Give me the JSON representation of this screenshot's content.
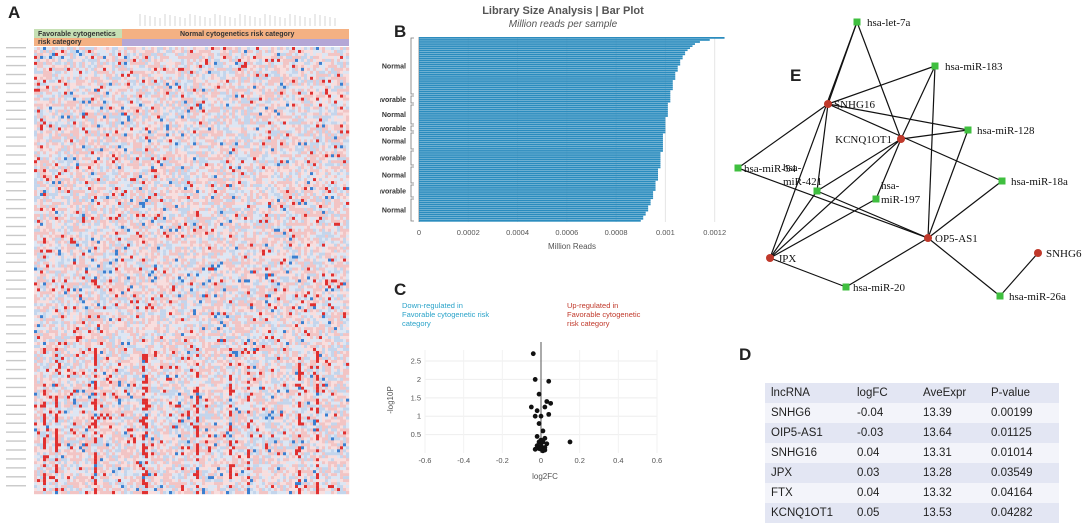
{
  "panels": {
    "a": "A",
    "b": "B",
    "c": "C",
    "d": "D",
    "e": "E"
  },
  "heatmap": {
    "group_labels": {
      "favorable_line1": "Favorable cytogenetics",
      "favorable_line2": "risk category",
      "normal": "Normal cytogenetics risk category"
    },
    "colors": {
      "favorable": "#f4b183",
      "favorable_light": "#c6e0b4",
      "normal": "#f4b183",
      "normal_bar": "#b4a7d6",
      "high": "#e03030",
      "low": "#3a7fd0"
    }
  },
  "chart_data": [
    {
      "type": "bar",
      "title": "Library Size Analysis | Bar Plot",
      "subtitle": "Million reads per sample",
      "xlabel": "Million Reads",
      "ylabel": "",
      "xlim": [
        0,
        0.00125
      ],
      "xticks": [
        "0",
        "0.0002",
        "0.0004",
        "0.0006",
        "0.0008",
        "0.001",
        "0.0012"
      ],
      "category_labels": [
        "Normal",
        "Favorable",
        "Normal",
        "Favorable",
        "Normal",
        "Favorable",
        "Normal",
        "Favorable",
        "Normal"
      ],
      "values": [
        0.00124,
        0.00118,
        0.00114,
        0.00112,
        0.00111,
        0.0011,
        0.00109,
        0.00108,
        0.00108,
        0.00107,
        0.00107,
        0.00106,
        0.00106,
        0.00106,
        0.00105,
        0.00105,
        0.00105,
        0.00104,
        0.00104,
        0.00104,
        0.00104,
        0.00103,
        0.00103,
        0.00103,
        0.00103,
        0.00103,
        0.00102,
        0.00102,
        0.00102,
        0.00102,
        0.00102,
        0.00102,
        0.00101,
        0.00101,
        0.00101,
        0.00101,
        0.00101,
        0.00101,
        0.00101,
        0.001,
        0.001,
        0.001,
        0.001,
        0.001,
        0.001,
        0.001,
        0.001,
        0.00099,
        0.00099,
        0.00099,
        0.00099,
        0.00099,
        0.00099,
        0.00099,
        0.00099,
        0.00099,
        0.00098,
        0.00098,
        0.00098,
        0.00098,
        0.00098,
        0.00098,
        0.00098,
        0.00098,
        0.00097,
        0.00097,
        0.00097,
        0.00097,
        0.00097,
        0.00097,
        0.00096,
        0.00096,
        0.00096,
        0.00096,
        0.00096,
        0.00095,
        0.00095,
        0.00095,
        0.00095,
        0.00094,
        0.00094,
        0.00094,
        0.00093,
        0.00093,
        0.00093,
        0.00092,
        0.00092,
        0.00091,
        0.00091,
        0.0009
      ],
      "bar_color": "#2b8cbe"
    },
    {
      "type": "scatter",
      "title": "",
      "xlabel": "log2FC",
      "ylabel": "-log10P",
      "xlim": [
        -0.6,
        0.6
      ],
      "ylim": [
        0,
        2.8
      ],
      "xticks": [
        "-0.6",
        "-0.4",
        "-0.2",
        "0",
        "0.2",
        "0.4",
        "0.6"
      ],
      "yticks": [
        "0.5",
        "1",
        "1.5",
        "2",
        "2.5"
      ],
      "annotations": {
        "down": [
          "Down-regulated in",
          "Favorable cytogenetic risk",
          "category"
        ],
        "up": [
          "Up-regulated in",
          "Favorable cytogenetic",
          "risk category"
        ]
      },
      "x": [
        -0.04,
        -0.03,
        -0.01,
        0.04,
        0.03,
        0.05,
        0.02,
        0.04,
        -0.05,
        -0.02,
        -0.03,
        0.0,
        -0.01,
        0.01,
        -0.02,
        0.02,
        0.0,
        -0.01,
        0.01,
        0.03,
        0.15,
        -0.02,
        0.0,
        0.02,
        -0.01,
        0.01,
        0.0,
        -0.03,
        0.02,
        0.01
      ],
      "y": [
        2.7,
        2.0,
        1.6,
        1.95,
        1.4,
        1.35,
        1.25,
        1.05,
        1.25,
        1.15,
        1.0,
        1.0,
        0.8,
        0.6,
        0.45,
        0.4,
        0.35,
        0.3,
        0.3,
        0.25,
        0.3,
        0.2,
        0.2,
        0.15,
        0.12,
        0.1,
        0.1,
        0.1,
        0.08,
        0.06
      ]
    }
  ],
  "network": {
    "nodes": [
      {
        "id": "let7a",
        "label": "hsa-let-7a",
        "type": "mirna"
      },
      {
        "id": "mir183",
        "label": "hsa-miR-183",
        "type": "mirna"
      },
      {
        "id": "snhg16",
        "label": "SNHG16",
        "type": "lncrna"
      },
      {
        "id": "mir128",
        "label": "hsa-miR-128",
        "type": "mirna"
      },
      {
        "id": "kcnq",
        "label": "KCNQ1OT1",
        "type": "lncrna"
      },
      {
        "id": "mir54",
        "label": "hsa-miR-54",
        "type": "mirna"
      },
      {
        "id": "mir18a",
        "label": "hsa-miR-18a",
        "type": "mirna"
      },
      {
        "id": "mir421",
        "label": "hsa-miR-421",
        "type": "mirna"
      },
      {
        "id": "mir197",
        "label": "hsa-miR-197",
        "type": "mirna"
      },
      {
        "id": "oip5",
        "label": "OP5-AS1",
        "type": "lncrna"
      },
      {
        "id": "snhg6",
        "label": "SNHG6",
        "type": "lncrna"
      },
      {
        "id": "jpx",
        "label": "JPX",
        "type": "lncrna"
      },
      {
        "id": "mir20",
        "label": "hsa-miR-20",
        "type": "mirna"
      },
      {
        "id": "mir26a",
        "label": "hsa-miR-26a",
        "type": "mirna"
      }
    ],
    "edges": [
      [
        "let7a",
        "snhg16"
      ],
      [
        "let7a",
        "kcnq"
      ],
      [
        "let7a",
        "jpx"
      ],
      [
        "mir183",
        "snhg16"
      ],
      [
        "mir183",
        "kcnq"
      ],
      [
        "mir183",
        "oip5"
      ],
      [
        "snhg16",
        "mir128"
      ],
      [
        "snhg16",
        "mir54"
      ],
      [
        "snhg16",
        "mir18a"
      ],
      [
        "snhg16",
        "mir421"
      ],
      [
        "kcnq",
        "mir128"
      ],
      [
        "kcnq",
        "mir421"
      ],
      [
        "kcnq",
        "jpx"
      ],
      [
        "kcnq",
        "mir197"
      ],
      [
        "mir128",
        "oip5"
      ],
      [
        "mir54",
        "oip5"
      ],
      [
        "mir18a",
        "oip5"
      ],
      [
        "mir421",
        "oip5"
      ],
      [
        "mir197",
        "jpx"
      ],
      [
        "mir421",
        "jpx"
      ],
      [
        "oip5",
        "mir20"
      ],
      [
        "jpx",
        "mir20"
      ],
      [
        "oip5",
        "mir26a"
      ],
      [
        "snhg6",
        "mir26a"
      ]
    ],
    "colors": {
      "lncrna": "#c0392b",
      "mirna": "#3fbf3f",
      "edge": "#111111"
    }
  },
  "table": {
    "headers": [
      "lncRNA",
      "logFC",
      "AveExpr",
      "P-value"
    ],
    "rows": [
      [
        "SNHG6",
        "-0.04",
        "13.39",
        "0.00199"
      ],
      [
        "OIP5-AS1",
        "-0.03",
        "13.64",
        "0.01125"
      ],
      [
        "SNHG16",
        "0.04",
        "13.31",
        "0.01014"
      ],
      [
        "JPX",
        "0.03",
        "13.28",
        "0.03549"
      ],
      [
        "FTX",
        "0.04",
        "13.32",
        "0.04164"
      ],
      [
        "KCNQ1OT1",
        "0.05",
        "13.53",
        "0.04282"
      ]
    ]
  }
}
